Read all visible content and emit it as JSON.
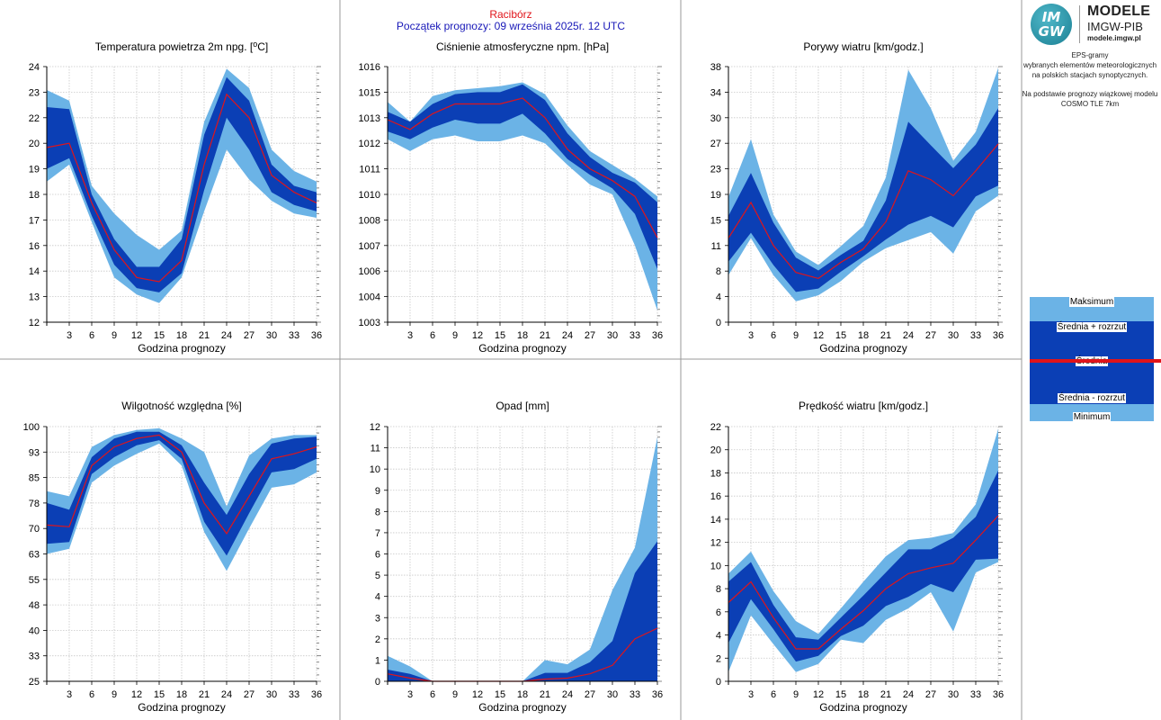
{
  "header": {
    "station": "Racibórz",
    "forecast_start": "Początek prognozy: 09 września 2025r. 12 UTC"
  },
  "logo": {
    "mark_top": "IM",
    "mark_bottom": "GW",
    "line1": "MODELE",
    "line2": "IMGW-PIB",
    "line3": "modele.imgw.pl"
  },
  "info": {
    "line1": "EPS-gramy",
    "line2": "wybranych elementów meteorologicznych",
    "line3": "na polskich stacjach  synoptycznych.",
    "line4": "Na podstawie prognozy wiązkowej modelu",
    "line5": "COSMO TLE 7km"
  },
  "legend": {
    "max": "Maksimum",
    "mean_plus": "Średnia + rozrzut",
    "mean": "Średnia",
    "mean_minus": "Średnia - rozrzut",
    "min": "Minimum"
  },
  "colors": {
    "outer_band": "#6bb3e6",
    "inner_band": "#0b3fb5",
    "mean_line": "#e0141a",
    "station_text": "#e0141a",
    "start_text": "#1818b8",
    "grid": "#c8c8c8"
  },
  "chart_data": [
    {
      "type": "area",
      "title": "Temperatura powietrza 2m npg. [°C]",
      "xlabel": "Godzina prognozy",
      "ylabel": "",
      "xlim": [
        0,
        36
      ],
      "ylim": [
        12,
        24
      ],
      "yticks": [
        "12",
        "13",
        "14",
        "16",
        "17",
        "18",
        "19",
        "20",
        "22",
        "23",
        "24"
      ],
      "x": [
        0,
        3,
        6,
        9,
        12,
        15,
        18,
        21,
        24,
        27,
        30,
        33,
        36
      ],
      "series": [
        {
          "values": [
            18.6,
            19.4,
            16.7,
            14.1,
            13.3,
            12.9,
            14.1,
            17.2,
            20.1,
            18.7,
            17.7,
            17.1,
            16.9
          ]
        },
        {
          "values": [
            19.2,
            19.7,
            17.0,
            14.7,
            13.6,
            13.4,
            14.3,
            18.2,
            21.6,
            20.1,
            18.1,
            17.5,
            17.2
          ]
        },
        {
          "values": [
            20.2,
            20.4,
            17.6,
            15.4,
            14.1,
            13.9,
            14.9,
            19.4,
            22.7,
            21.6,
            18.9,
            18.1,
            17.6
          ]
        },
        {
          "values": [
            22.1,
            22.0,
            18.0,
            15.9,
            14.6,
            14.6,
            15.9,
            20.8,
            23.5,
            22.4,
            19.4,
            18.4,
            18.1
          ]
        },
        {
          "values": [
            22.9,
            22.4,
            18.4,
            17.1,
            16.1,
            15.4,
            16.3,
            21.4,
            23.9,
            23.0,
            20.1,
            19.1,
            18.6
          ]
        }
      ]
    },
    {
      "type": "area",
      "title": "Ciśnienie atmosferyczne npm. [hPa]",
      "xlabel": "Godzina prognozy",
      "ylabel": "",
      "xlim": [
        0,
        36
      ],
      "ylim": [
        1003,
        1016
      ],
      "yticks": [
        "1003",
        "1004",
        "1006",
        "1007",
        "1008",
        "1010",
        "1011",
        "1012",
        "1013",
        "1015",
        "1016"
      ],
      "x": [
        0,
        3,
        6,
        9,
        12,
        15,
        18,
        21,
        24,
        27,
        30,
        33,
        36
      ],
      "series": [
        {
          "values": [
            1012.3,
            1011.7,
            1012.3,
            1012.5,
            1012.2,
            1012.2,
            1012.5,
            1012.1,
            1011.0,
            1010.0,
            1009.5,
            1006.9,
            1003.6
          ]
        },
        {
          "values": [
            1012.7,
            1012.3,
            1012.9,
            1013.3,
            1013.1,
            1013.1,
            1013.6,
            1012.6,
            1011.3,
            1010.5,
            1009.8,
            1008.5,
            1005.7
          ]
        },
        {
          "values": [
            1013.3,
            1012.8,
            1013.6,
            1014.1,
            1014.1,
            1014.1,
            1014.4,
            1013.4,
            1011.8,
            1010.8,
            1010.2,
            1009.4,
            1007.3
          ]
        },
        {
          "values": [
            1013.7,
            1013.2,
            1014.1,
            1014.6,
            1014.7,
            1014.7,
            1015.1,
            1014.3,
            1012.6,
            1011.4,
            1010.6,
            1010.1,
            1009.1
          ]
        },
        {
          "values": [
            1014.2,
            1013.2,
            1014.5,
            1014.8,
            1014.9,
            1015.0,
            1015.2,
            1014.6,
            1013.0,
            1011.7,
            1011.0,
            1010.3,
            1009.4
          ]
        }
      ]
    },
    {
      "type": "area",
      "title": "Porywy wiatru [km/godz.]",
      "xlabel": "Godzina prognozy",
      "ylabel": "",
      "xlim": [
        0,
        36
      ],
      "ylim": [
        0,
        38
      ],
      "yticks": [
        "0",
        "4",
        "8",
        "11",
        "15",
        "19",
        "23",
        "27",
        "30",
        "34",
        "38"
      ],
      "x": [
        0,
        3,
        6,
        9,
        12,
        15,
        18,
        21,
        24,
        27,
        30,
        33,
        36
      ],
      "series": [
        {
          "values": [
            7.0,
            12.5,
            7.0,
            3.1,
            4.0,
            6.1,
            9.0,
            11.0,
            12.2,
            13.4,
            10.2,
            16.5,
            18.8
          ]
        },
        {
          "values": [
            9.0,
            13.3,
            8.5,
            4.5,
            5.0,
            7.5,
            9.8,
            12.3,
            14.5,
            15.8,
            14.1,
            18.7,
            20.3
          ]
        },
        {
          "values": [
            12.5,
            17.8,
            11.4,
            7.4,
            6.5,
            8.9,
            10.9,
            14.9,
            22.5,
            21.2,
            18.8,
            22.5,
            26.5
          ]
        },
        {
          "values": [
            15.8,
            22.2,
            14.8,
            9.6,
            7.7,
            10.0,
            12.1,
            18.1,
            29.8,
            26.3,
            22.9,
            26.4,
            31.8
          ]
        },
        {
          "values": [
            18.6,
            27.2,
            16.0,
            10.5,
            8.5,
            11.3,
            14.3,
            21.5,
            37.5,
            31.8,
            24.0,
            28.3,
            37.8
          ]
        }
      ]
    },
    {
      "type": "area",
      "title": "Wilgotność względna [%]",
      "xlabel": "Godzina prognozy",
      "ylabel": "",
      "xlim": [
        0,
        36
      ],
      "ylim": [
        25,
        100
      ],
      "yticks": [
        "25",
        "33",
        "40",
        "48",
        "55",
        "63",
        "70",
        "78",
        "85",
        "93",
        "100"
      ],
      "x": [
        0,
        3,
        6,
        9,
        12,
        15,
        18,
        21,
        24,
        27,
        30,
        33,
        36
      ],
      "series": [
        {
          "values": [
            62.5,
            64.0,
            83.5,
            88.5,
            92.0,
            95.0,
            88.5,
            69.0,
            57.5,
            70.0,
            82.0,
            83.0,
            86.5
          ]
        },
        {
          "values": [
            65.5,
            66.0,
            86.0,
            91.0,
            94.5,
            96.0,
            90.5,
            72.0,
            62.0,
            74.5,
            86.5,
            87.5,
            90.5
          ]
        },
        {
          "values": [
            71.0,
            70.5,
            88.5,
            94.0,
            96.5,
            97.5,
            92.5,
            77.5,
            68.5,
            79.5,
            90.5,
            92.0,
            94.0
          ]
        },
        {
          "values": [
            77.5,
            75.5,
            91.0,
            96.5,
            98.5,
            98.5,
            94.5,
            83.5,
            74.0,
            86.0,
            95.0,
            96.5,
            97.0
          ]
        },
        {
          "values": [
            81.0,
            79.5,
            94.0,
            97.5,
            99.0,
            99.5,
            96.5,
            92.5,
            76.5,
            91.5,
            96.5,
            97.5,
            97.5
          ]
        }
      ]
    },
    {
      "type": "area",
      "title": "Opad [mm]",
      "xlabel": "Godzina prognozy",
      "ylabel": "",
      "xlim": [
        0,
        36
      ],
      "ylim": [
        0,
        12
      ],
      "yticks": [
        "0",
        "1",
        "2",
        "3",
        "4",
        "5",
        "6",
        "7",
        "8",
        "9",
        "10",
        "11",
        "12"
      ],
      "x": [
        0,
        3,
        6,
        9,
        12,
        15,
        18,
        21,
        24,
        27,
        30,
        33,
        36
      ],
      "series": [
        {
          "values": [
            0,
            0,
            0,
            0,
            0,
            0,
            0,
            0,
            0,
            0,
            0,
            0,
            0
          ]
        },
        {
          "values": [
            0,
            0,
            0,
            0,
            0,
            0,
            0,
            0,
            0,
            0,
            0,
            0,
            0
          ]
        },
        {
          "values": [
            0.35,
            0.15,
            0,
            0,
            0,
            0,
            0,
            0.1,
            0.15,
            0.35,
            0.75,
            2.0,
            2.5
          ]
        },
        {
          "values": [
            0.55,
            0.35,
            0,
            0,
            0,
            0,
            0,
            0.4,
            0.4,
            0.9,
            1.9,
            5.1,
            6.6
          ]
        },
        {
          "values": [
            1.2,
            0.7,
            0,
            0,
            0,
            0,
            0,
            1.0,
            0.8,
            1.5,
            4.3,
            6.3,
            11.5
          ]
        }
      ]
    },
    {
      "type": "area",
      "title": "Prędkość wiatru [km/godz.]",
      "xlabel": "Godzina prognozy",
      "ylabel": "",
      "xlim": [
        0,
        36
      ],
      "ylim": [
        0,
        22
      ],
      "yticks": [
        "0",
        "2",
        "4",
        "6",
        "8",
        "10",
        "12",
        "14",
        "16",
        "18",
        "20",
        "22"
      ],
      "x": [
        0,
        3,
        6,
        9,
        12,
        15,
        18,
        21,
        24,
        27,
        30,
        33,
        36
      ],
      "series": [
        {
          "values": [
            0.8,
            5.7,
            3.2,
            0.8,
            1.5,
            3.6,
            3.3,
            5.3,
            6.3,
            7.7,
            4.3,
            9.4,
            10.3
          ]
        },
        {
          "values": [
            3.3,
            7.1,
            4.5,
            1.7,
            2.2,
            3.9,
            4.8,
            6.5,
            7.3,
            8.4,
            7.7,
            10.5,
            10.6
          ]
        },
        {
          "values": [
            6.8,
            8.6,
            5.5,
            2.8,
            2.8,
            4.5,
            6.1,
            8.0,
            9.3,
            9.8,
            10.2,
            12.2,
            14.3
          ]
        },
        {
          "values": [
            8.6,
            10.3,
            6.6,
            3.8,
            3.6,
            5.5,
            7.4,
            9.4,
            11.4,
            11.4,
            12.4,
            14.2,
            18.2
          ]
        },
        {
          "values": [
            9.3,
            11.2,
            7.8,
            5.2,
            4.1,
            6.3,
            8.6,
            10.8,
            12.2,
            12.4,
            12.8,
            15.3,
            21.8
          ]
        }
      ]
    }
  ]
}
